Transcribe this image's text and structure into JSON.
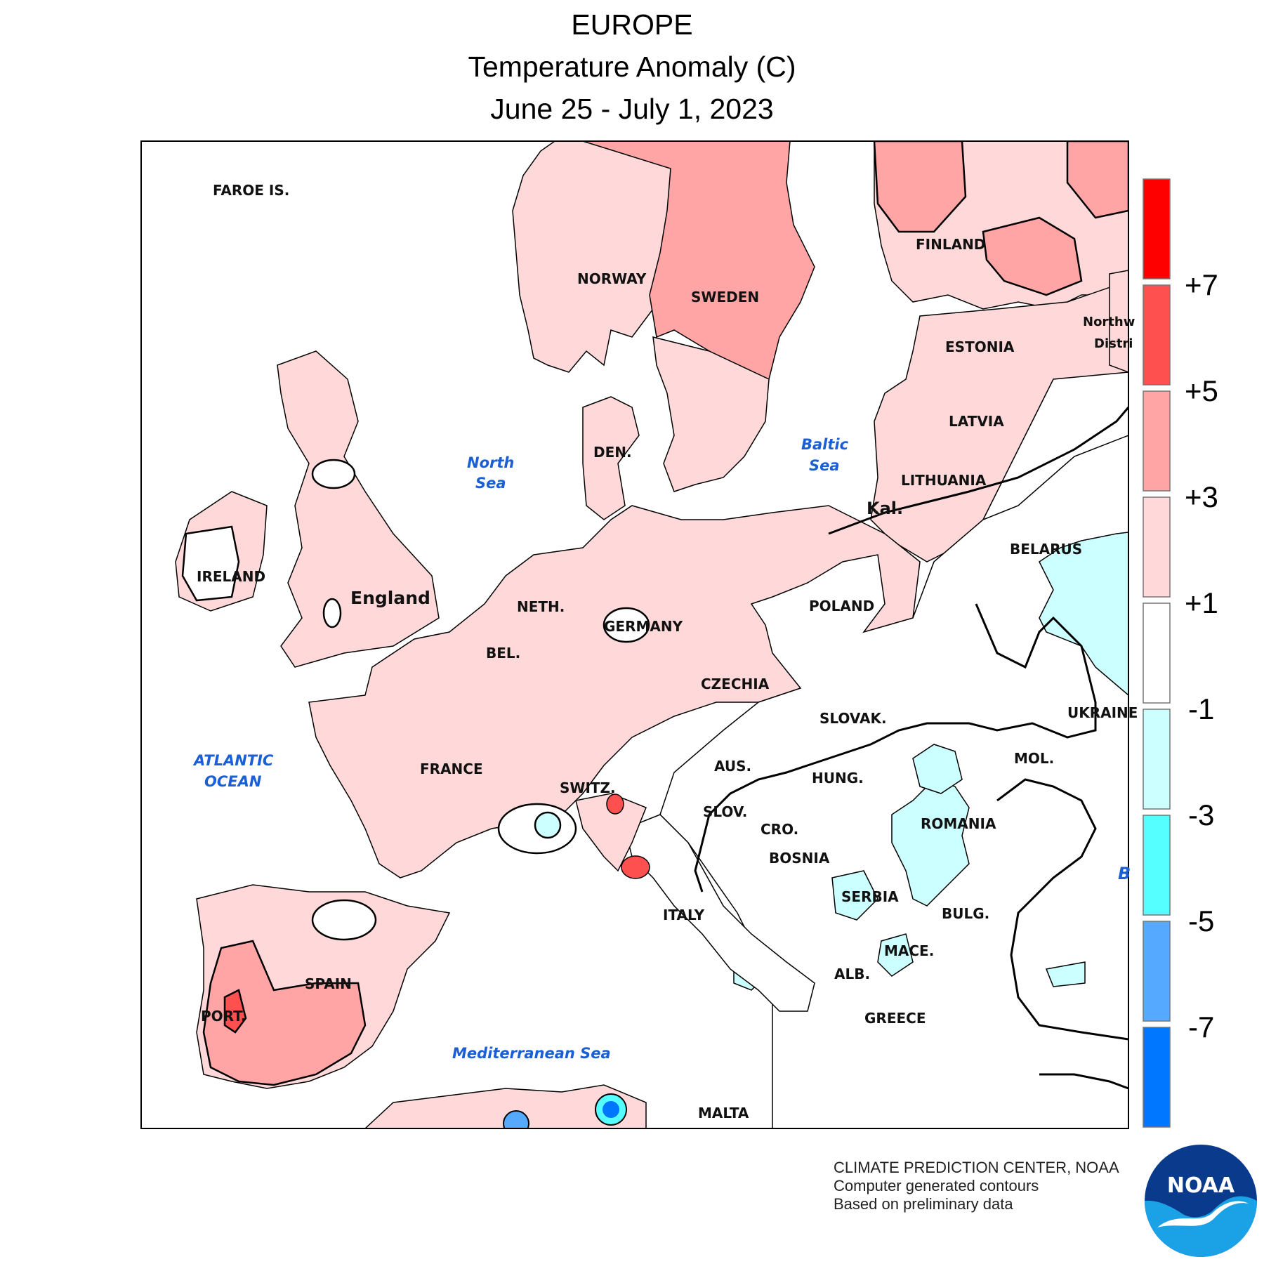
{
  "header": {
    "region": "EUROPE",
    "variable": "Temperature Anomaly (C)",
    "period": "June 25 - July 1, 2023"
  },
  "legend": {
    "bins": [
      {
        "color": "#ff0000"
      },
      {
        "color": "#ff5050"
      },
      {
        "color": "#ffa5a5"
      },
      {
        "color": "#ffd9d9"
      },
      {
        "color": "#ffffff"
      },
      {
        "color": "#ccffff"
      },
      {
        "color": "#55ffff"
      },
      {
        "color": "#55aaff"
      },
      {
        "color": "#0077ff"
      }
    ],
    "labels": [
      "+7",
      "+5",
      "+3",
      "+1",
      "-1",
      "-3",
      "-5",
      "-7"
    ]
  },
  "map": {
    "countries": {
      "faroe": "FAROE IS.",
      "norway": "NORWAY",
      "sweden": "SWEDEN",
      "finland": "FINLAND",
      "estonia": "ESTONIA",
      "latvia": "LATVIA",
      "lithuania": "LITHUANIA",
      "kal": "Kal.",
      "belarus": "BELARUS",
      "denmark": "DEN.",
      "ireland": "IRELAND",
      "england": "England",
      "netherlands": "NETH.",
      "belgium": "BEL.",
      "germany": "GERMANY",
      "poland": "POLAND",
      "czechia": "CZECHIA",
      "slovakia": "SLOVAK.",
      "ukraine": "UKRAINE",
      "austria": "AUS.",
      "hungary": "HUNG.",
      "moldova": "MOL.",
      "france": "FRANCE",
      "switzerland": "SWITZ.",
      "slovenia": "SLOV.",
      "croatia": "CRO.",
      "bosnia": "BOSNIA",
      "romania": "ROMANIA",
      "serbia": "SERBIA",
      "bulgaria": "BULG.",
      "italy": "ITALY",
      "macedonia": "MACE.",
      "albania": "ALB.",
      "greece": "GREECE",
      "spain": "SPAIN",
      "portugal": "PORT.",
      "malta": "MALTA",
      "nw_line1": "Northw",
      "nw_line2": "Distri"
    },
    "waters": {
      "north_sea_1": "North",
      "north_sea_2": "Sea",
      "baltic_1": "Baltic",
      "baltic_2": "Sea",
      "atlantic_1": "ATLANTIC",
      "atlantic_2": "OCEAN",
      "med": "Mediterranean Sea",
      "black_sea_fragment": "B"
    }
  },
  "footer": {
    "line1": "CLIMATE PREDICTION CENTER, NOAA",
    "line2": "Computer generated contours",
    "line3": "Based on preliminary data",
    "logo_text": "NOAA"
  }
}
